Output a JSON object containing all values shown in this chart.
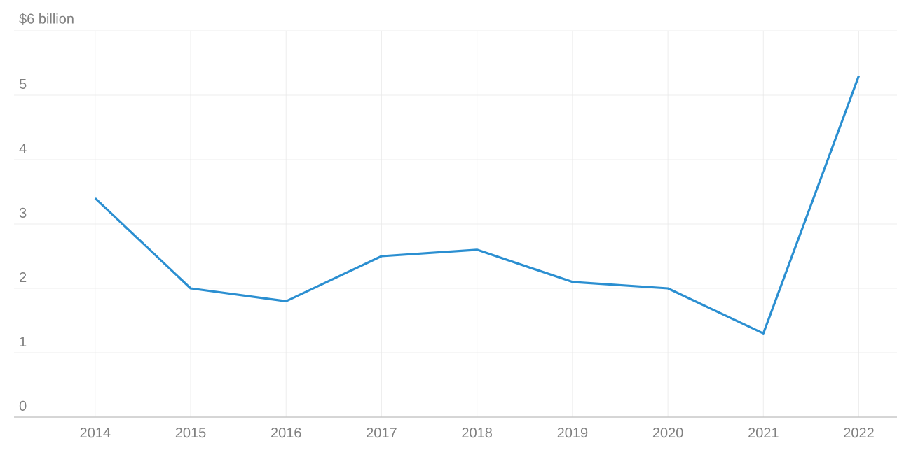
{
  "chart_data": {
    "type": "line",
    "x": [
      2014,
      2015,
      2016,
      2017,
      2018,
      2019,
      2020,
      2021,
      2022
    ],
    "series": [
      {
        "color": "#2b8fd1",
        "values": [
          3.4,
          2.0,
          1.8,
          2.5,
          2.6,
          2.1,
          2.0,
          1.3,
          5.3
        ]
      }
    ],
    "xlim": [
      2013.15,
      2022.4
    ],
    "ylim": [
      0,
      6
    ],
    "xticks": [
      2014,
      2015,
      2016,
      2017,
      2018,
      2019,
      2020,
      2021,
      2022
    ],
    "yticks": [
      0,
      1,
      2,
      3,
      4,
      5,
      {
        "value": 6,
        "label": "$6 billion"
      }
    ],
    "grid": true,
    "marker": "none",
    "line_style": "solid"
  }
}
